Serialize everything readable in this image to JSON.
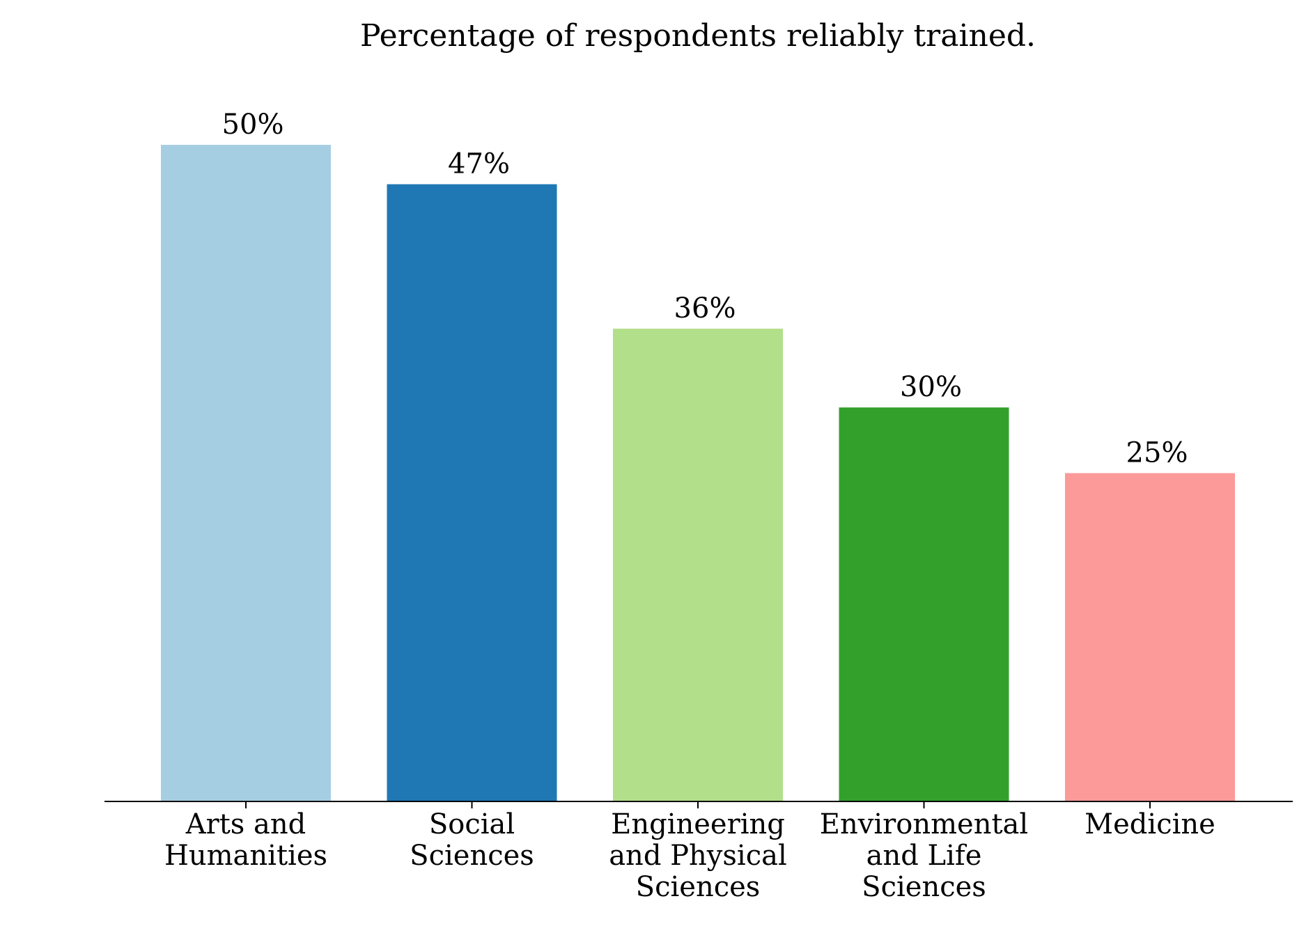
{
  "chart_data": {
    "type": "bar",
    "title": "Percentage of respondents reliably trained.",
    "categories": [
      [
        "Arts and",
        "Humanities"
      ],
      [
        "Social",
        "Sciences"
      ],
      [
        "Engineering",
        "and Physical",
        "Sciences"
      ],
      [
        "Environmental",
        "and Life",
        "Sciences"
      ],
      [
        "Medicine"
      ]
    ],
    "values": [
      50,
      47,
      36,
      30,
      25
    ],
    "value_labels": [
      "50%",
      "47%",
      "36%",
      "30%",
      "25%"
    ],
    "colors": [
      "#a6cee3",
      "#1f78b4",
      "#b2df8a",
      "#33a02c",
      "#fb9a99"
    ],
    "xlabel": "",
    "ylabel": "",
    "ylim": [
      0,
      50
    ],
    "grid": false,
    "legend": "none"
  }
}
